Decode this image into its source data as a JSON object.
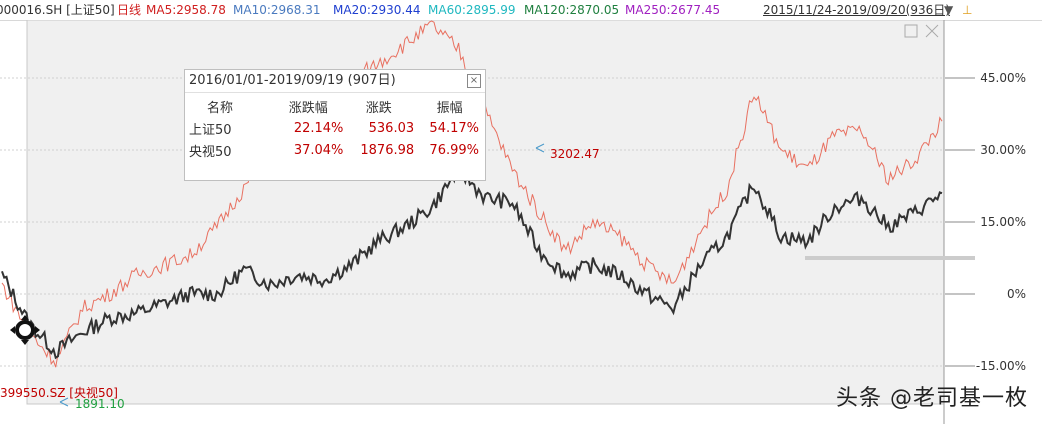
{
  "header": {
    "code": "000016.SH [上证50]",
    "period": "日线",
    "ma5": "MA5:2958.78",
    "ma10": "MA10:2968.31",
    "ma20": "MA20:2930.44",
    "ma60": "MA60:2895.99",
    "ma120": "MA120:2870.05",
    "ma250": "MA250:2677.45",
    "date_range": "2015/11/24-2019/09/20(936日)",
    "colors": {
      "code": "#333333",
      "period": "#d02020",
      "ma5": "#d02020",
      "ma10": "#4a7abf",
      "ma20": "#2040d0",
      "ma60": "#20b8c0",
      "ma120": "#208040",
      "ma250": "#a020c0"
    }
  },
  "info_box": {
    "title": "2016/01/01-2019/09/19 (907日)",
    "columns": [
      "名称",
      "涨跌幅",
      "涨跌",
      "振幅"
    ],
    "rows": [
      {
        "name": "上证50",
        "pct": "22.14%",
        "change": "536.03",
        "amplitude": "54.17%"
      },
      {
        "name": "央视50",
        "pct": "37.04%",
        "change": "1876.98",
        "amplitude": "76.99%"
      }
    ]
  },
  "annotations": {
    "high": "3202.47",
    "low": "1891.10",
    "compare_label": "399550.SZ [央视50]"
  },
  "watermark": "头条 @老司基一枚",
  "chart_data": {
    "type": "line",
    "ylabel": "",
    "ytick_labels": [
      "45.00%",
      "30.00%",
      "15.00%",
      "0%",
      "-15.00%"
    ],
    "yticks": [
      45,
      30,
      15,
      0,
      -15
    ],
    "ylim": [
      -20,
      54
    ],
    "grid": true,
    "x": [
      0,
      4,
      8,
      12,
      16,
      20,
      24,
      28,
      32,
      36,
      40,
      44,
      48,
      52,
      56,
      60,
      64,
      68,
      72,
      76,
      80,
      84,
      88,
      92,
      96,
      100
    ],
    "series": [
      {
        "name": "上证50",
        "color": "#333333",
        "values": [
          4,
          -6,
          -12,
          -8,
          -5,
          -4,
          -2,
          0,
          0,
          5,
          2,
          4,
          3,
          6,
          11,
          14,
          18,
          26,
          20,
          19,
          9,
          4,
          6,
          4,
          0,
          -3
        ]
      },
      {
        "name": "央视50",
        "color": "#e87060",
        "values": [
          2,
          -8,
          -14,
          -3,
          0,
          4,
          6,
          8,
          14,
          22,
          30,
          35,
          39,
          45,
          48,
          52,
          56,
          51,
          38,
          26,
          17,
          9,
          15,
          12,
          6,
          2
        ]
      }
    ],
    "series_tail": {
      "x": [
        100,
        104,
        108,
        112,
        116,
        120,
        124,
        128,
        132,
        136,
        140
      ],
      "上证50": [
        -3,
        6,
        12,
        23,
        12,
        11,
        18,
        20,
        14,
        17,
        21
      ],
      "央视50": [
        2,
        13,
        22,
        42,
        30,
        26,
        33,
        34,
        24,
        28,
        36
      ]
    }
  }
}
